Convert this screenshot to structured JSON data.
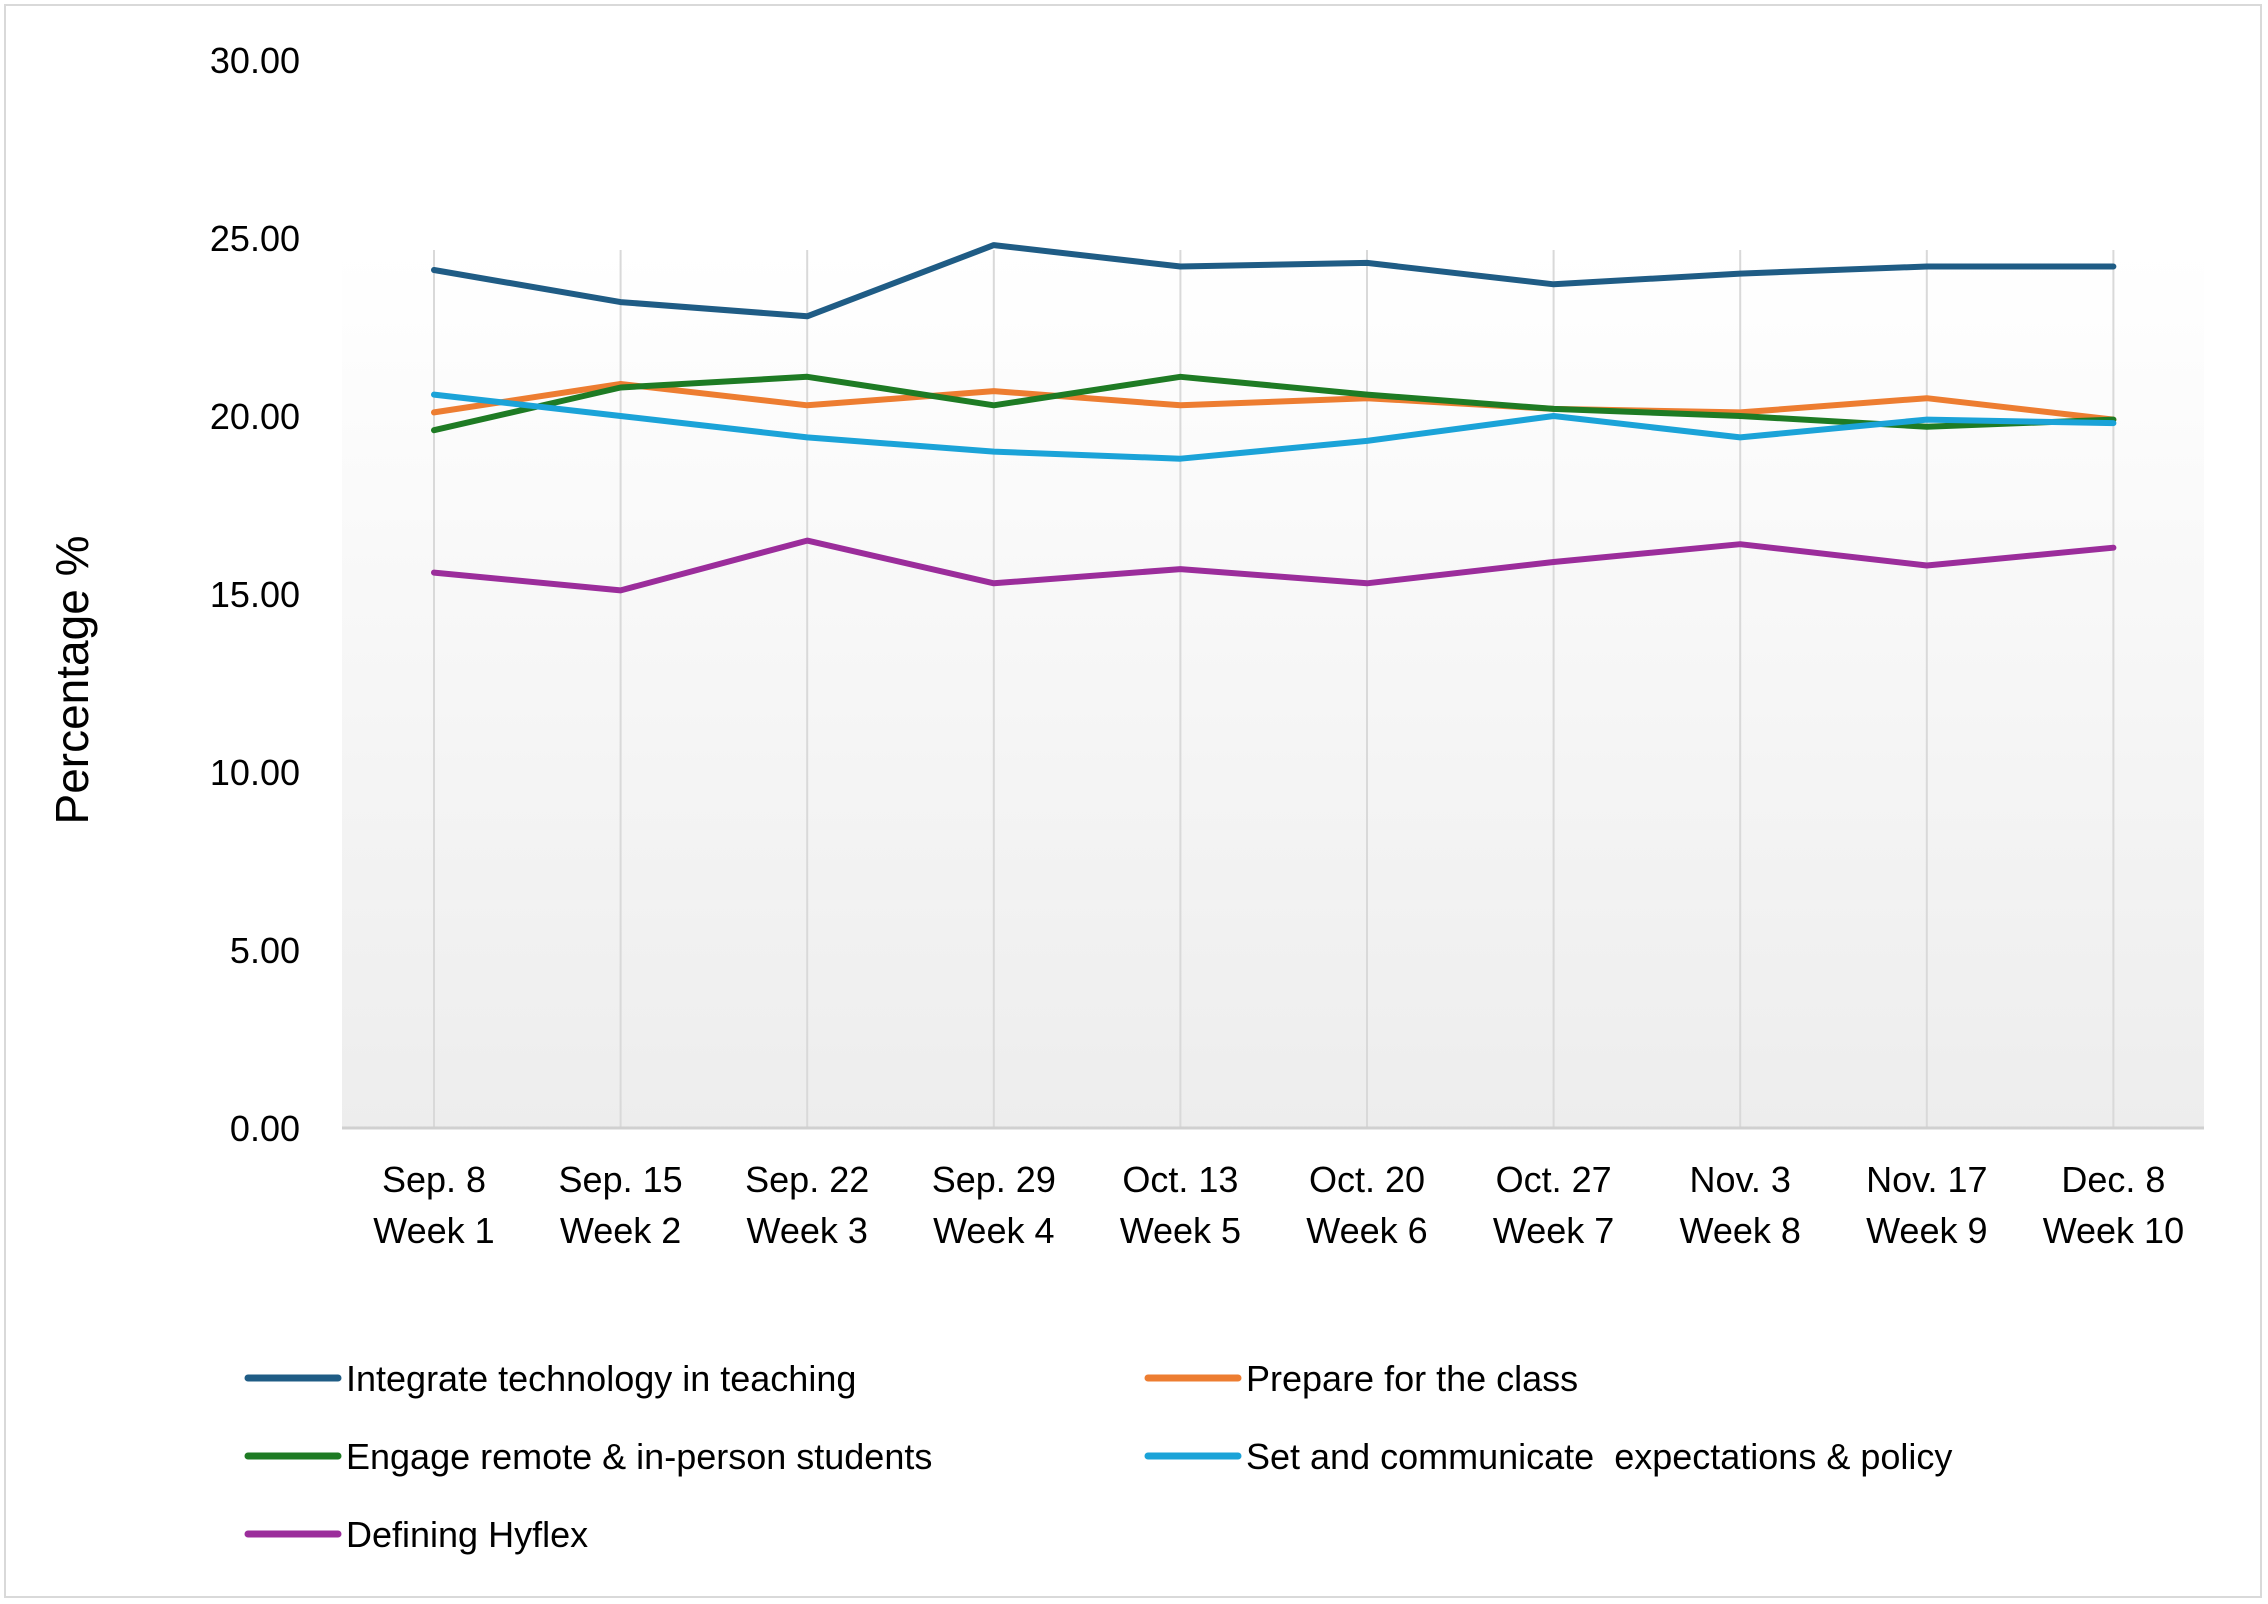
{
  "chart_data": {
    "type": "line",
    "title": "",
    "xlabel": "",
    "ylabel": "Percentage %",
    "ylim": [
      0,
      30
    ],
    "yticks": [
      "0.00",
      "5.00",
      "10.00",
      "15.00",
      "20.00",
      "25.00",
      "30.00"
    ],
    "grid": "vertical",
    "legend_position": "bottom",
    "categories": [
      [
        "Sep. 8",
        "Week 1"
      ],
      [
        "Sep. 15",
        "Week 2"
      ],
      [
        "Sep. 22",
        "Week 3"
      ],
      [
        "Sep. 29",
        "Week 4"
      ],
      [
        "Oct. 13",
        "Week 5"
      ],
      [
        "Oct. 20",
        "Week 6"
      ],
      [
        "Oct. 27",
        "Week 7"
      ],
      [
        "Nov. 3",
        "Week 8"
      ],
      [
        "Nov. 17",
        "Week 9"
      ],
      [
        "Dec. 8",
        "Week 10"
      ]
    ],
    "series": [
      {
        "name": "Integrate technology in teaching",
        "color": "#1f5c85",
        "values": [
          24.1,
          23.2,
          22.8,
          24.8,
          24.2,
          24.3,
          23.7,
          24.0,
          24.2,
          24.2
        ]
      },
      {
        "name": "Prepare for the class",
        "color": "#ed7d31",
        "values": [
          20.1,
          20.9,
          20.3,
          20.7,
          20.3,
          20.5,
          20.2,
          20.1,
          20.5,
          19.9
        ]
      },
      {
        "name": "Engage remote & in-person students",
        "color": "#1e7b24",
        "values": [
          19.6,
          20.8,
          21.1,
          20.3,
          21.1,
          20.6,
          20.2,
          20.0,
          19.7,
          19.9
        ]
      },
      {
        "name": "Set and communicate  expectations & policy",
        "color": "#1ba3d8",
        "values": [
          20.6,
          20.0,
          19.4,
          19.0,
          18.8,
          19.3,
          20.0,
          19.4,
          19.9,
          19.8
        ]
      },
      {
        "name": "Defining Hyflex",
        "color": "#9b2d9b",
        "values": [
          15.6,
          15.1,
          16.5,
          15.3,
          15.7,
          15.3,
          15.9,
          16.4,
          15.8,
          16.3
        ]
      }
    ]
  }
}
